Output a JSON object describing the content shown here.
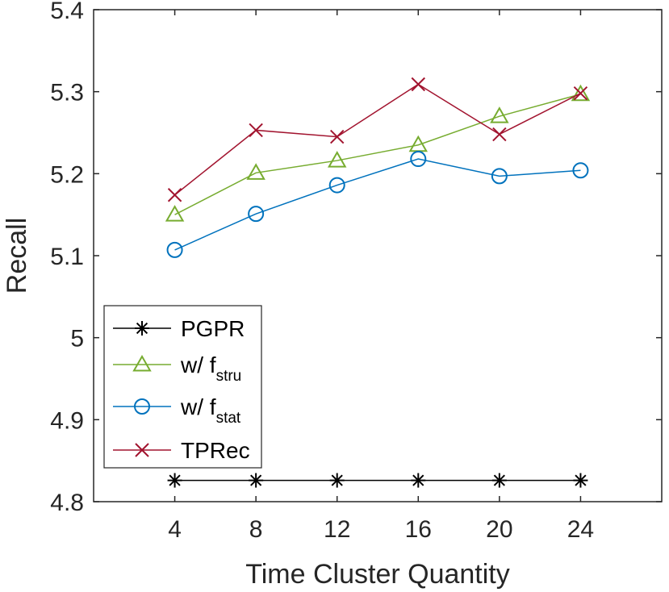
{
  "chart_data": {
    "type": "line",
    "title": "",
    "xlabel": "Time Cluster Quantity",
    "ylabel": "Recall",
    "x": [
      4,
      8,
      12,
      16,
      20,
      24
    ],
    "x_tick_labels": [
      "4",
      "8",
      "12",
      "16",
      "20",
      "24"
    ],
    "xlim": [
      0,
      28
    ],
    "ylim": [
      4.8,
      5.4
    ],
    "y_ticks": [
      4.8,
      4.9,
      5.0,
      5.1,
      5.2,
      5.3,
      5.4
    ],
    "y_tick_labels": [
      "4.8",
      "4.9",
      "5",
      "5.1",
      "5.2",
      "5.3",
      "5.4"
    ],
    "grid": false,
    "legend_position": "bottom-left",
    "series": [
      {
        "name": "PGPR",
        "legend_main": "PGPR",
        "legend_sub": "",
        "marker": "asterisk",
        "color": "#000000",
        "values": [
          4.826,
          4.826,
          4.826,
          4.826,
          4.826,
          4.826
        ]
      },
      {
        "name": "w/ f_stru",
        "legend_main": "w/ f",
        "legend_sub": "stru",
        "marker": "triangle",
        "color": "#77AC30",
        "values": [
          5.15,
          5.201,
          5.216,
          5.235,
          5.27,
          5.297
        ]
      },
      {
        "name": "w/ f_stat",
        "legend_main": "w/ f",
        "legend_sub": "stat",
        "marker": "circle",
        "color": "#0072BD",
        "values": [
          5.107,
          5.151,
          5.186,
          5.218,
          5.197,
          5.204
        ]
      },
      {
        "name": "TPRec",
        "legend_main": "TPRec",
        "legend_sub": "",
        "marker": "x",
        "color": "#A2142F",
        "values": [
          5.174,
          5.253,
          5.245,
          5.309,
          5.248,
          5.298
        ]
      }
    ]
  }
}
